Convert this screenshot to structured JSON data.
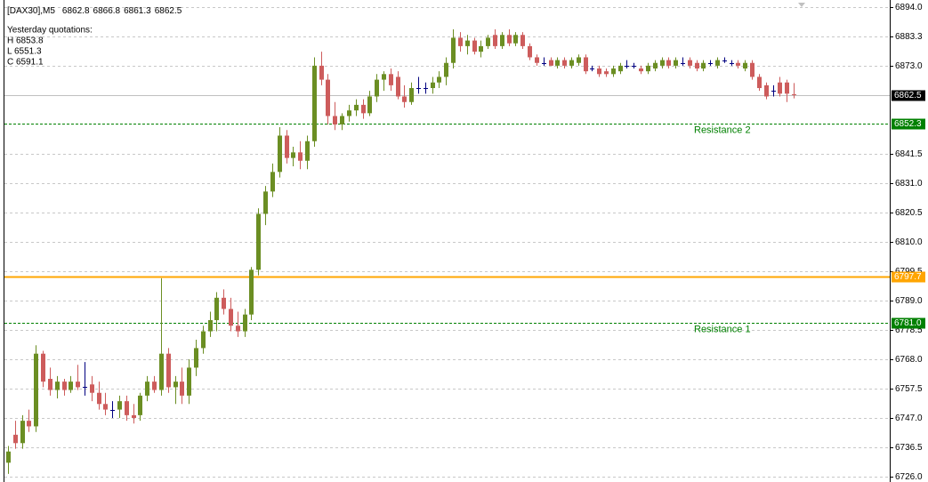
{
  "chart_data": {
    "type": "candlestick",
    "title": "[DAX30],M5",
    "open": [
      6731,
      6741,
      6738,
      6746,
      6744,
      6770,
      6761,
      6757,
      6760,
      6757,
      6760,
      6758,
      6759,
      6756,
      6752,
      6750,
      6750,
      6753,
      6748,
      6748,
      6755,
      6760,
      6757,
      6770,
      6758,
      6760,
      6755,
      6765,
      6772,
      6778,
      6782,
      6790,
      6786,
      6780,
      6778,
      6784,
      6800,
      6820,
      6828,
      6835,
      6848,
      6840,
      6842,
      6839,
      6846,
      6873,
      6868,
      6855,
      6852,
      6855,
      6857,
      6859,
      6856,
      6862,
      6868,
      6870,
      6869,
      6862,
      6860,
      6865,
      6865,
      6865,
      6867,
      6869,
      6874,
      6883,
      6880,
      6882,
      6878,
      6880,
      6884,
      6880,
      6884,
      6881,
      6884,
      6880,
      6876,
      6874,
      6875,
      6873,
      6875,
      6873,
      6874,
      6876,
      6872,
      6872,
      6871,
      6870,
      6871,
      6873,
      6873,
      6872,
      6871,
      6872,
      6873,
      6875,
      6873,
      6874,
      6875,
      6874,
      6872,
      6874,
      6873,
      6875,
      6874,
      6874,
      6872,
      6874,
      6869,
      6866,
      6864,
      6867,
      6867,
      6862.8
    ],
    "high": [
      6737,
      6746,
      6748,
      6750,
      6773,
      6771,
      6765,
      6762,
      6761,
      6762,
      6766,
      6767,
      6762,
      6760,
      6756,
      6753,
      6755,
      6755,
      6752,
      6756,
      6762,
      6762,
      6797,
      6772,
      6762,
      6765,
      6768,
      6775,
      6780,
      6785,
      6792,
      6793,
      6790,
      6785,
      6786,
      6801,
      6822,
      6830,
      6838,
      6851,
      6850,
      6844,
      6846,
      6848,
      6876,
      6878,
      6870,
      6860,
      6856,
      6859,
      6861,
      6861,
      6864,
      6870,
      6871,
      6872,
      6871,
      6866,
      6867,
      6869,
      6867,
      6869,
      6871,
      6876,
      6886,
      6885,
      6884,
      6883,
      6882,
      6884,
      6886,
      6885,
      6886,
      6885,
      6885,
      6881,
      6877,
      6876,
      6876,
      6876,
      6876,
      6876,
      6877,
      6877,
      6873,
      6873,
      6872,
      6873,
      6874,
      6875,
      6874,
      6873,
      6874,
      6875,
      6876,
      6876,
      6876,
      6876,
      6876,
      6875,
      6875,
      6875,
      6876,
      6876,
      6875,
      6875,
      6875,
      6875,
      6870,
      6867,
      6866,
      6869,
      6868,
      6866.8
    ],
    "low": [
      6727,
      6736,
      6736,
      6742,
      6742,
      6758,
      6755,
      6754,
      6755,
      6756,
      6757,
      6755,
      6753,
      6750,
      6748,
      6747,
      6747,
      6746,
      6745,
      6746,
      6753,
      6756,
      6755,
      6756,
      6752,
      6752,
      6752,
      6762,
      6770,
      6776,
      6778,
      6784,
      6778,
      6776,
      6776,
      6782,
      6798,
      6816,
      6826,
      6833,
      6838,
      6837,
      6836,
      6836,
      6844,
      6866,
      6852,
      6850,
      6850,
      6853,
      6855,
      6854,
      6855,
      6860,
      6864,
      6864,
      6861,
      6858,
      6859,
      6863,
      6863,
      6863,
      6865,
      6866,
      6872,
      6878,
      6877,
      6877,
      6876,
      6879,
      6879,
      6879,
      6880,
      6880,
      6879,
      6875,
      6873,
      6873,
      6873,
      6872,
      6872,
      6872,
      6873,
      6870,
      6871,
      6869,
      6869,
      6869,
      6870,
      6872,
      6872,
      6870,
      6870,
      6871,
      6872,
      6872,
      6872,
      6873,
      6872,
      6871,
      6871,
      6873,
      6872,
      6874,
      6873,
      6872,
      6871,
      6868,
      6864,
      6861,
      6862,
      6862,
      6860,
      6861.3
    ],
    "close": [
      6735,
      6738,
      6746,
      6744,
      6770,
      6760,
      6757,
      6760,
      6757,
      6760,
      6758,
      6758,
      6756,
      6752,
      6750,
      6750,
      6753,
      6748,
      6747,
      6755,
      6760,
      6757,
      6770,
      6758,
      6760,
      6755,
      6765,
      6772,
      6778,
      6782,
      6790,
      6786,
      6780,
      6778,
      6784,
      6800,
      6820,
      6828,
      6835,
      6848,
      6840,
      6842,
      6839,
      6846,
      6873,
      6868,
      6855,
      6852,
      6855,
      6857,
      6859,
      6856,
      6862,
      6868,
      6870,
      6866,
      6862,
      6860,
      6865,
      6865,
      6865,
      6867,
      6869,
      6874,
      6883,
      6880,
      6882,
      6878,
      6880,
      6883,
      6880,
      6884,
      6881,
      6884,
      6880,
      6876,
      6874,
      6874,
      6873,
      6875,
      6873,
      6875,
      6876,
      6871,
      6872,
      6870,
      6870,
      6872,
      6873,
      6873,
      6873,
      6871,
      6873,
      6874,
      6875,
      6873,
      6875,
      6874,
      6873,
      6872,
      6874,
      6874,
      6875,
      6875,
      6874,
      6873,
      6874,
      6869,
      6865,
      6862,
      6864,
      6863,
      6863,
      6862.5
    ],
    "up_color": "#6b8e23",
    "down_color": "#cd5c5c",
    "doji_color": "#000080",
    "last_price_line_color": "#c0c0c0",
    "last_price_box_color": "#000000",
    "ylim": [
      6724.1,
      6896.5
    ],
    "yticks": [
      {
        "value": 6894,
        "label": "6894.0"
      },
      6883.3,
      {
        "value": 6873,
        "label": "6873.0"
      },
      6841.5,
      {
        "value": 6831,
        "label": "6831.0"
      },
      6820.5,
      {
        "value": 6810,
        "label": "6810.0"
      },
      6799.5,
      {
        "value": 6789,
        "label": "6789.0"
      },
      6778.5,
      {
        "value": 6768,
        "label": "6768.0"
      },
      6757.5,
      {
        "value": 6747,
        "label": "6747.0"
      },
      6736.5,
      {
        "value": 6726,
        "label": "6726.0"
      }
    ],
    "grid": true,
    "levels": [
      {
        "name": "Resistance 2",
        "value": 6852.3,
        "color": "#008000",
        "style": "dashed"
      },
      {
        "value": {
          "value": 6797.7,
          "label": "6797.7"
        },
        "color": "#ffa500",
        "style": "solid"
      },
      {
        "name": "Resistance 1",
        "value": {
          "value": 6781,
          "label": "6781.0"
        },
        "color": "#008000",
        "style": "dashed"
      }
    ],
    "info": {
      "heading": "Yesterday quotations:",
      "lines": [
        "H 6853.8",
        "L 6551.3",
        "C 6591.1"
      ]
    }
  }
}
